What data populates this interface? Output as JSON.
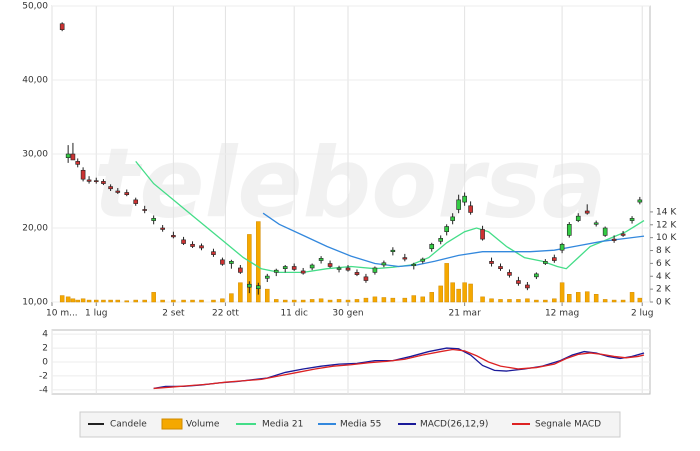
{
  "chart_data": [
    {
      "type": "candlestick",
      "watermark": "teleborsa",
      "xlim": [
        0,
        100
      ],
      "xticks": [
        {
          "value": 0,
          "label": "10 m..."
        },
        {
          "value": 7.4,
          "label": "1 lug"
        },
        {
          "value": 20.3,
          "label": "2 set"
        },
        {
          "value": 29,
          "label": "22 ott"
        },
        {
          "value": 40.5,
          "label": "11 dic"
        },
        {
          "value": 49.5,
          "label": "30 gen"
        },
        {
          "value": 69,
          "label": "21 mar"
        },
        {
          "value": 85.3,
          "label": "12 mag"
        },
        {
          "value": 98.7,
          "label": "2 lug"
        }
      ],
      "ylim": [
        10,
        50
      ],
      "yticks": [
        {
          "value": 10,
          "label": "10,00"
        },
        {
          "value": 20,
          "label": "20,00"
        },
        {
          "value": 30,
          "label": "30,00"
        },
        {
          "value": 40,
          "label": "40,00"
        },
        {
          "value": 50,
          "label": "50,00"
        }
      ],
      "y2lim": [
        0,
        46
      ],
      "y2ticks": [
        {
          "value": 0,
          "label": "0 K"
        },
        {
          "value": 2,
          "label": "2 K"
        },
        {
          "value": 4,
          "label": "4 K"
        },
        {
          "value": 6,
          "label": "6 K"
        },
        {
          "value": 8,
          "label": "8 K"
        },
        {
          "value": 10,
          "label": "10 K"
        },
        {
          "value": 12,
          "label": "12 K"
        },
        {
          "value": 14,
          "label": "14 K"
        }
      ],
      "grid": true,
      "candles": {
        "name": "Candele",
        "color": "#222222",
        "up_color": "#33cc44",
        "down_color": "#cc3333",
        "x": [
          1.7,
          2.7,
          3.5,
          4.3,
          5.2,
          6.2,
          7.4,
          8.6,
          9.8,
          11,
          12.5,
          14,
          15.5,
          17,
          18.5,
          20.3,
          22,
          23.5,
          25,
          27,
          28.5,
          30,
          31.5,
          33,
          34.5,
          36,
          37.5,
          39,
          40.5,
          42,
          43.5,
          45,
          46.5,
          48,
          49.5,
          51,
          52.5,
          54,
          55.5,
          57,
          59,
          60.5,
          62,
          63.5,
          65,
          66,
          67,
          68,
          69,
          70,
          72,
          73.5,
          75,
          76.5,
          78,
          79.5,
          81,
          82.5,
          84,
          85.3,
          86.5,
          88,
          89.5,
          91,
          92.5,
          94,
          95.5,
          97,
          98.3
        ],
        "open": [
          47.6,
          29.5,
          30.0,
          29.0,
          27.8,
          26.5,
          26.4,
          26.3,
          25.6,
          25.0,
          24.8,
          23.8,
          22.5,
          21.0,
          20.0,
          19.0,
          18.4,
          17.8,
          17.6,
          16.8,
          15.7,
          15.2,
          14.6,
          12.0,
          11.8,
          13.2,
          14.0,
          14.5,
          14.8,
          14.2,
          14.6,
          15.6,
          15.2,
          14.4,
          14.6,
          14.0,
          13.4,
          14.0,
          15.0,
          16.8,
          16.0,
          14.9,
          15.5,
          17.2,
          18.2,
          19.5,
          21.0,
          22.5,
          23.5,
          23.0,
          19.8,
          15.5,
          14.8,
          14.0,
          12.9,
          12.3,
          13.4,
          15.2,
          16.0,
          17.0,
          19.0,
          21.0,
          22.3,
          20.5,
          19.0,
          18.5,
          19.2,
          21.0,
          23.5
        ],
        "high": [
          47.8,
          31.2,
          31.5,
          29.4,
          28.2,
          27.0,
          26.8,
          26.6,
          25.9,
          25.4,
          25.2,
          24.1,
          23.0,
          21.7,
          20.4,
          19.5,
          18.8,
          18.2,
          17.9,
          17.2,
          16.0,
          15.7,
          15.0,
          12.8,
          12.6,
          13.8,
          14.5,
          15.0,
          15.2,
          14.6,
          15.2,
          16.2,
          15.6,
          14.9,
          15.0,
          14.4,
          13.8,
          14.8,
          15.6,
          17.4,
          16.5,
          15.3,
          16.0,
          18.0,
          19.0,
          20.5,
          22.0,
          24.5,
          24.8,
          23.6,
          20.3,
          16.0,
          15.2,
          14.4,
          13.4,
          12.7,
          14.0,
          15.8,
          16.4,
          18.0,
          20.8,
          22.0,
          23.2,
          21.0,
          20.2,
          19.0,
          19.6,
          21.6,
          24.2
        ],
        "low": [
          46.6,
          28.8,
          29.5,
          28.2,
          26.3,
          26.0,
          26.0,
          25.8,
          25.0,
          24.6,
          24.3,
          23.0,
          22.0,
          20.5,
          19.5,
          18.6,
          17.7,
          17.3,
          17.0,
          16.1,
          14.9,
          14.5,
          13.8,
          11.2,
          11.0,
          12.7,
          13.5,
          14.0,
          14.2,
          13.7,
          14.3,
          15.2,
          14.6,
          14.0,
          14.1,
          13.5,
          12.6,
          13.7,
          14.7,
          16.3,
          15.5,
          14.4,
          15.2,
          16.8,
          17.8,
          19.0,
          20.5,
          22.0,
          23.0,
          21.8,
          18.3,
          14.8,
          14.2,
          13.3,
          12.2,
          11.6,
          13.1,
          15.0,
          15.3,
          16.6,
          18.7,
          20.8,
          21.8,
          20.2,
          18.8,
          18.0,
          18.8,
          20.6,
          23.2
        ],
        "close": [
          46.8,
          30.0,
          29.2,
          28.6,
          26.6,
          26.3,
          26.3,
          26.0,
          25.3,
          24.8,
          24.5,
          23.3,
          22.4,
          21.3,
          19.8,
          18.8,
          17.9,
          17.5,
          17.3,
          16.4,
          15.1,
          15.5,
          14.0,
          12.4,
          12.2,
          13.5,
          14.3,
          14.8,
          14.4,
          13.9,
          15.0,
          15.9,
          14.8,
          14.6,
          14.3,
          13.7,
          12.9,
          14.6,
          15.3,
          17.0,
          15.8,
          15.1,
          15.8,
          17.8,
          18.6,
          20.2,
          21.5,
          23.8,
          24.3,
          22.1,
          18.5,
          15.2,
          14.5,
          13.6,
          12.5,
          11.9,
          13.8,
          15.5,
          15.6,
          17.8,
          20.5,
          21.6,
          22.0,
          20.7,
          20.0,
          18.3,
          19.0,
          21.3,
          23.8
        ]
      },
      "volume": {
        "name": "Volume",
        "color": "#f5a800",
        "axis": "y2",
        "values": [
          1.0,
          0.8,
          0.5,
          0.3,
          0.5,
          0.3,
          0.3,
          0.3,
          0.3,
          0.3,
          0.2,
          0.3,
          0.3,
          1.5,
          0.3,
          0.3,
          0.3,
          0.3,
          0.3,
          0.3,
          0.5,
          1.3,
          3.0,
          10.5,
          12.5,
          2.0,
          0.4,
          0.3,
          0.3,
          0.3,
          0.4,
          0.5,
          0.3,
          0.4,
          0.3,
          0.4,
          0.6,
          0.8,
          0.7,
          0.6,
          0.6,
          1.0,
          0.8,
          1.5,
          2.5,
          6.0,
          3.0,
          2.0,
          3.0,
          2.8,
          0.8,
          0.5,
          0.4,
          0.4,
          0.4,
          0.5,
          0.3,
          0.3,
          0.5,
          3.0,
          1.2,
          1.5,
          1.6,
          1.2,
          0.4,
          0.3,
          0.3,
          1.5,
          0.6
        ]
      },
      "series": [
        {
          "name": "Media 21",
          "color": "#44dd88",
          "x": [
            14,
            17,
            20,
            23,
            26,
            29,
            32,
            35,
            38,
            42,
            46,
            50,
            54,
            57,
            60,
            63,
            66,
            69,
            71,
            73,
            76,
            79,
            82,
            84.5,
            86,
            88,
            90,
            93,
            96,
            99
          ],
          "values": [
            29,
            26,
            24,
            22,
            20,
            18,
            16,
            14.5,
            14,
            14,
            14.5,
            14.8,
            14.5,
            14.7,
            15,
            16,
            18,
            19.5,
            20,
            19.5,
            17.5,
            16,
            15.5,
            14.8,
            14.5,
            16,
            17.5,
            18.5,
            19.5,
            21
          ]
        },
        {
          "name": "Media 55",
          "color": "#3388dd",
          "x": [
            35.3,
            38,
            42,
            46,
            50,
            54,
            58,
            61,
            64,
            68,
            72,
            76,
            80,
            84,
            88,
            92,
            96,
            99
          ],
          "values": [
            22,
            20.5,
            19,
            17.5,
            16.2,
            15.2,
            14.8,
            15,
            15.5,
            16.3,
            16.8,
            16.8,
            16.8,
            17,
            17.6,
            18.2,
            18.6,
            18.9
          ]
        }
      ]
    },
    {
      "type": "line",
      "xlim": [
        0,
        100
      ],
      "ylim": [
        -4.6,
        4.6
      ],
      "yticks": [
        -4,
        -2,
        0,
        2,
        4
      ],
      "grid": true,
      "series": [
        {
          "name": "MACD(26,12,9)",
          "color": "#1a1a99",
          "x": [
            17,
            19,
            22,
            25,
            28,
            31,
            34,
            36,
            39,
            42,
            45,
            48,
            51,
            54,
            57,
            60,
            63,
            66,
            68,
            70,
            72,
            74,
            76,
            79,
            82,
            85,
            87,
            89,
            91,
            93,
            95,
            97,
            99
          ],
          "values": [
            -3.8,
            -3.5,
            -3.5,
            -3.3,
            -3.0,
            -2.8,
            -2.5,
            -2.3,
            -1.5,
            -1.0,
            -0.6,
            -0.3,
            -0.2,
            0.2,
            0.2,
            0.8,
            1.5,
            2.0,
            1.9,
            1.0,
            -0.5,
            -1.2,
            -1.3,
            -1.0,
            -0.6,
            0.2,
            1.0,
            1.5,
            1.3,
            0.8,
            0.5,
            0.8,
            1.3
          ]
        },
        {
          "name": "Segnale MACD",
          "color": "#dd2222",
          "x": [
            17,
            20,
            23,
            26,
            29,
            32,
            35,
            38,
            41,
            44,
            47,
            50,
            53,
            56,
            59,
            62,
            65,
            67,
            69,
            71,
            73,
            75,
            78,
            81,
            84,
            86,
            88,
            90,
            92,
            94,
            96,
            98,
            99
          ],
          "values": [
            -3.8,
            -3.6,
            -3.4,
            -3.2,
            -2.9,
            -2.7,
            -2.5,
            -2.0,
            -1.5,
            -1.0,
            -0.6,
            -0.4,
            -0.1,
            0.1,
            0.4,
            1.0,
            1.5,
            1.8,
            1.6,
            0.9,
            0,
            -0.6,
            -1.0,
            -0.8,
            -0.3,
            0.5,
            1.1,
            1.3,
            1.1,
            0.8,
            0.6,
            0.8,
            1.0
          ]
        }
      ]
    }
  ]
}
